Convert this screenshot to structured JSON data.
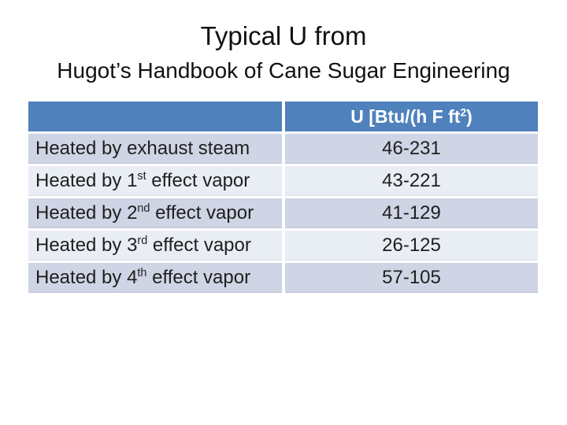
{
  "slide": {
    "title_line1": "Typical U from",
    "title_line2": "Hugot’s Handbook of Cane Sugar Engineering"
  },
  "table": {
    "header": {
      "col1": "",
      "col2_pre": "U [Btu/(h F ft",
      "col2_sup": "2",
      "col2_post": ")"
    },
    "rows": [
      {
        "label_pre": "Heated by exhaust steam",
        "label_sup": "",
        "label_post": "",
        "value": "46-231"
      },
      {
        "label_pre": "Heated by 1",
        "label_sup": "st",
        "label_post": " effect vapor",
        "value": "43-221"
      },
      {
        "label_pre": "Heated by 2",
        "label_sup": "nd",
        "label_post": " effect vapor",
        "value": "41-129"
      },
      {
        "label_pre": "Heated by 3",
        "label_sup": "rd",
        "label_post": " effect vapor",
        "value": "26-125"
      },
      {
        "label_pre": "Heated by 4",
        "label_sup": "th",
        "label_post": " effect vapor",
        "value": "57-105"
      }
    ],
    "colors": {
      "header_bg": "#4F81BD",
      "header_text": "#FFFFFF",
      "band_dark": "#CFD5E4",
      "band_light": "#E9EDF4",
      "body_text": "#1F1F1F"
    }
  },
  "chart_data": {
    "type": "table",
    "title": "Typical U from Hugot’s Handbook of Cane Sugar Engineering",
    "columns": [
      "",
      "U [Btu/(h F ft²)"
    ],
    "rows": [
      [
        "Heated by exhaust steam",
        "46-231"
      ],
      [
        "Heated by 1st effect vapor",
        "43-221"
      ],
      [
        "Heated by 2nd effect vapor",
        "41-129"
      ],
      [
        "Heated by 3rd effect vapor",
        "26-125"
      ],
      [
        "Heated by 4th effect vapor",
        "57-105"
      ]
    ]
  }
}
